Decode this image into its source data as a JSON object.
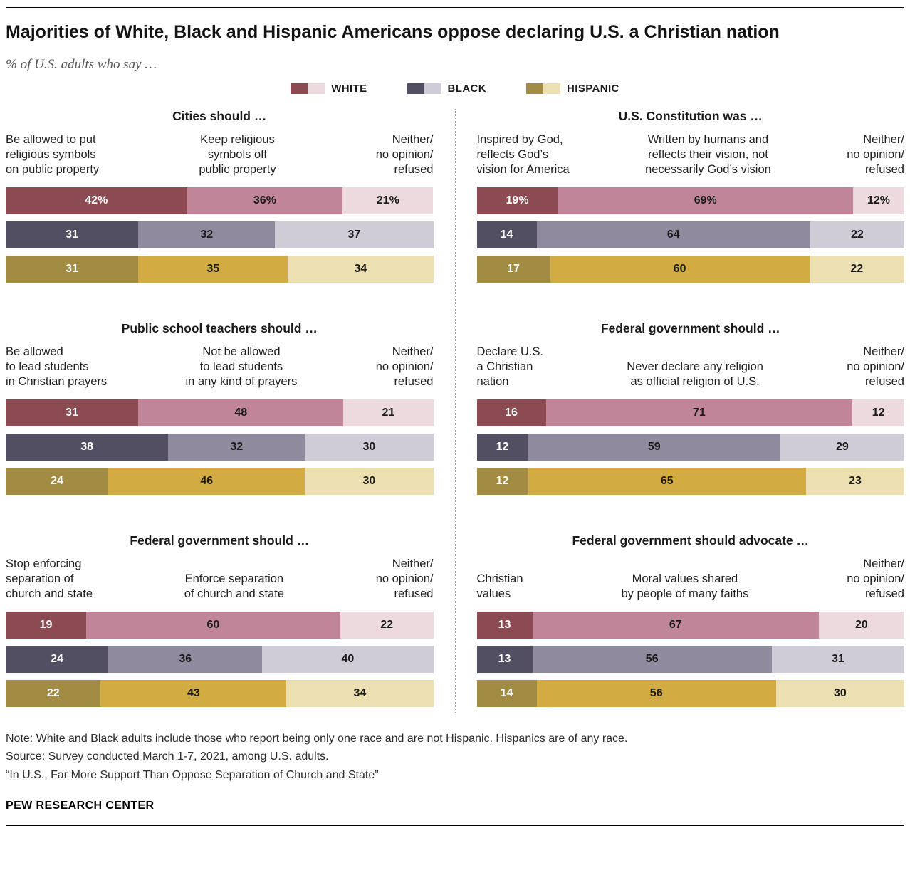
{
  "header": {
    "title": "Majorities of White, Black and Hispanic Americans oppose declaring U.S. a Christian nation",
    "subtitle": "% of U.S. adults who say …"
  },
  "legend": [
    {
      "label": "WHITE",
      "colors": [
        "#8c4a53",
        "#c08599",
        "#ecdade"
      ]
    },
    {
      "label": "BLACK",
      "colors": [
        "#534f63",
        "#8f8a9e",
        "#cfccd8"
      ]
    },
    {
      "label": "HISPANIC",
      "colors": [
        "#a28b42",
        "#d2ab43",
        "#ecdfb1"
      ]
    }
  ],
  "chart_data": [
    {
      "id": "cities-should",
      "type": "bar",
      "column": "left",
      "title": "Cities should …",
      "headers": [
        "Be allowed to put\nreligious symbols\non public property",
        "Keep religious\nsymbols off\npublic property",
        "Neither/\nno opinion/\nrefused"
      ],
      "rows": [
        {
          "group": "WHITE",
          "values": [
            42,
            36,
            21
          ],
          "labels": [
            "42%",
            "36%",
            "21%"
          ]
        },
        {
          "group": "BLACK",
          "values": [
            31,
            32,
            37
          ],
          "labels": [
            "31",
            "32",
            "37"
          ]
        },
        {
          "group": "HISPANIC",
          "values": [
            31,
            35,
            34
          ],
          "labels": [
            "31",
            "35",
            "34"
          ]
        }
      ]
    },
    {
      "id": "us-constitution-was",
      "type": "bar",
      "column": "right",
      "title": "U.S. Constitution was …",
      "headers": [
        "Inspired by God,\nreflects God’s\nvision for America",
        "Written by humans and\nreflects their vision, not\nnecessarily God’s vision",
        "Neither/\nno opinion/\nrefused"
      ],
      "rows": [
        {
          "group": "WHITE",
          "values": [
            19,
            69,
            12
          ],
          "labels": [
            "19%",
            "69%",
            "12%"
          ]
        },
        {
          "group": "BLACK",
          "values": [
            14,
            64,
            22
          ],
          "labels": [
            "14",
            "64",
            "22"
          ]
        },
        {
          "group": "HISPANIC",
          "values": [
            17,
            60,
            22
          ],
          "labels": [
            "17",
            "60",
            "22"
          ]
        }
      ]
    },
    {
      "id": "public-school-teachers-should",
      "type": "bar",
      "column": "left",
      "title": "Public school teachers should …",
      "headers": [
        "Be allowed\nto lead students\nin Christian prayers",
        "Not be allowed\nto lead students\nin any kind of prayers",
        "Neither/\nno opinion/\nrefused"
      ],
      "rows": [
        {
          "group": "WHITE",
          "values": [
            31,
            48,
            21
          ],
          "labels": [
            "31",
            "48",
            "21"
          ]
        },
        {
          "group": "BLACK",
          "values": [
            38,
            32,
            30
          ],
          "labels": [
            "38",
            "32",
            "30"
          ]
        },
        {
          "group": "HISPANIC",
          "values": [
            24,
            46,
            30
          ],
          "labels": [
            "24",
            "46",
            "30"
          ]
        }
      ]
    },
    {
      "id": "federal-government-should-declare",
      "type": "bar",
      "column": "right",
      "title": "Federal government should …",
      "headers": [
        "Declare U.S.\na Christian\nnation",
        "Never declare any religion\nas official religion of U.S.",
        "Neither/\nno opinion/\nrefused"
      ],
      "rows": [
        {
          "group": "WHITE",
          "values": [
            16,
            71,
            12
          ],
          "labels": [
            "16",
            "71",
            "12"
          ]
        },
        {
          "group": "BLACK",
          "values": [
            12,
            59,
            29
          ],
          "labels": [
            "12",
            "59",
            "29"
          ]
        },
        {
          "group": "HISPANIC",
          "values": [
            12,
            65,
            23
          ],
          "labels": [
            "12",
            "65",
            "23"
          ]
        }
      ]
    },
    {
      "id": "federal-government-should-separation",
      "type": "bar",
      "column": "left",
      "title": "Federal government should …",
      "headers": [
        "Stop enforcing\nseparation of\nchurch and state",
        "Enforce separation\nof church and state",
        "Neither/\nno opinion/\nrefused"
      ],
      "rows": [
        {
          "group": "WHITE",
          "values": [
            19,
            60,
            22
          ],
          "labels": [
            "19",
            "60",
            "22"
          ]
        },
        {
          "group": "BLACK",
          "values": [
            24,
            36,
            40
          ],
          "labels": [
            "24",
            "36",
            "40"
          ]
        },
        {
          "group": "HISPANIC",
          "values": [
            22,
            43,
            34
          ],
          "labels": [
            "22",
            "43",
            "34"
          ]
        }
      ]
    },
    {
      "id": "federal-government-should-advocate",
      "type": "bar",
      "column": "right",
      "title": "Federal government should advocate …",
      "headers": [
        "Christian\nvalues",
        "Moral values shared\nby people of many faiths",
        "Neither/\nno opinion/\nrefused"
      ],
      "rows": [
        {
          "group": "WHITE",
          "values": [
            13,
            67,
            20
          ],
          "labels": [
            "13",
            "67",
            "20"
          ]
        },
        {
          "group": "BLACK",
          "values": [
            13,
            56,
            31
          ],
          "labels": [
            "13",
            "56",
            "31"
          ]
        },
        {
          "group": "HISPANIC",
          "values": [
            14,
            56,
            30
          ],
          "labels": [
            "14",
            "56",
            "30"
          ]
        }
      ]
    }
  ],
  "footer": {
    "note": "Note: White and Black adults include those who report being only one race and are not Hispanic. Hispanics are of any race.",
    "source": "Source: Survey conducted March 1-7, 2021, among U.S. adults.",
    "report": "“In U.S., Far More Support Than Oppose Separation of Church and State”",
    "brand": "PEW RESEARCH CENTER"
  }
}
